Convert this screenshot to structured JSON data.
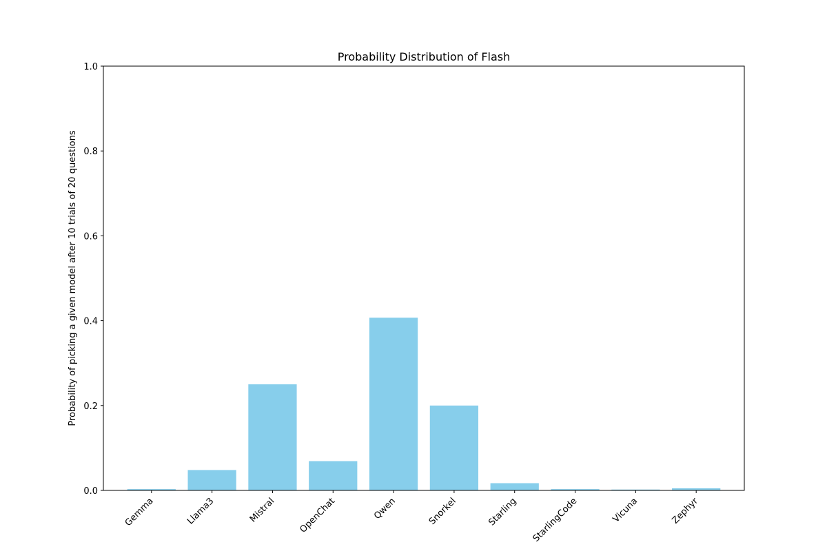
{
  "chart_data": {
    "type": "bar",
    "title": "Probability Distribution of Flash",
    "xlabel": "",
    "ylabel": "Probability of picking a given model after 10 trials of 20 questions",
    "categories": [
      "Gemma",
      "Llama3",
      "Mistral",
      "OpenChat",
      "Qwen",
      "Snorkel",
      "Starling",
      "StarlingCode",
      "Vicuna",
      "Zephyr"
    ],
    "values": [
      0.003,
      0.048,
      0.25,
      0.069,
      0.407,
      0.2,
      0.017,
      0.003,
      0.002,
      0.005
    ],
    "ylim": [
      0,
      1.0
    ],
    "yticks": [
      "0.0",
      "0.2",
      "0.4",
      "0.6",
      "0.8",
      "1.0"
    ],
    "bar_color": "#87ceeb",
    "grid": false
  }
}
